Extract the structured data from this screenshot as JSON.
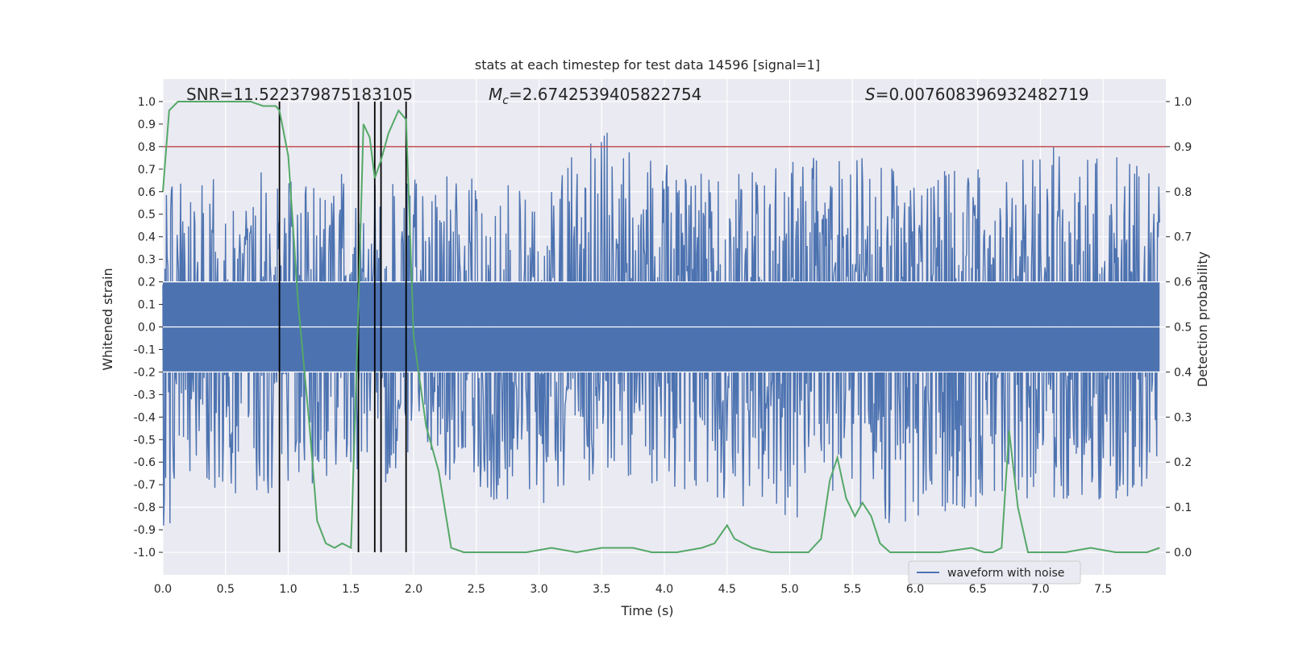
{
  "chart_data": {
    "type": "line",
    "title": "stats at each timestep for test data 14596 [signal=1]",
    "xlabel": "Time (s)",
    "ylabel_left": "Whitened strain",
    "ylabel_right": "Detection probability",
    "xlim": [
      0.0,
      8.0
    ],
    "ylim_left": [
      -1.1,
      1.1
    ],
    "ylim_right": [
      -0.05,
      1.05
    ],
    "x_ticks": [
      "0.0",
      "0.5",
      "1.0",
      "1.5",
      "2.0",
      "2.5",
      "3.0",
      "3.5",
      "4.0",
      "4.5",
      "5.0",
      "5.5",
      "6.0",
      "6.5",
      "7.0",
      "7.5"
    ],
    "x_tick_values": [
      0.0,
      0.5,
      1.0,
      1.5,
      2.0,
      2.5,
      3.0,
      3.5,
      4.0,
      4.5,
      5.0,
      5.5,
      6.0,
      6.5,
      7.0,
      7.5
    ],
    "y_left_ticks": [
      "-1.0",
      "-0.9",
      "-0.8",
      "-0.7",
      "-0.6",
      "-0.5",
      "-0.4",
      "-0.3",
      "-0.2",
      "-0.1",
      "0.0",
      "0.1",
      "0.2",
      "0.3",
      "0.4",
      "0.5",
      "0.6",
      "0.7",
      "0.8",
      "0.9",
      "1.0"
    ],
    "y_left_tick_values": [
      -1.0,
      -0.9,
      -0.8,
      -0.7,
      -0.6,
      -0.5,
      -0.4,
      -0.3,
      -0.2,
      -0.1,
      0.0,
      0.1,
      0.2,
      0.3,
      0.4,
      0.5,
      0.6,
      0.7,
      0.8,
      0.9,
      1.0
    ],
    "y_right_ticks": [
      "0.0",
      "0.1",
      "0.2",
      "0.3",
      "0.4",
      "0.5",
      "0.6",
      "0.7",
      "0.8",
      "0.9",
      "1.0"
    ],
    "y_right_tick_values": [
      0.0,
      0.1,
      0.2,
      0.3,
      0.4,
      0.5,
      0.6,
      0.7,
      0.8,
      0.9,
      1.0
    ],
    "grid": true,
    "legend": {
      "placement": "lower-right",
      "entries": [
        "waveform with noise"
      ]
    },
    "annotations": {
      "snr": "SNR=11.522379875183105",
      "mc_symbol": "M",
      "mc_sub": "c",
      "mc_value": "=2.6742539405822754",
      "s_symbol": "S",
      "s_value": "=0.007608396932482719"
    },
    "threshold": {
      "value": 0.8,
      "color": "#c44e52"
    },
    "vertical_markers": {
      "x": [
        0.93,
        1.56,
        1.69,
        1.74,
        1.94
      ],
      "ymin": -1.0,
      "ymax": 1.0,
      "color": "#000000"
    },
    "series": [
      {
        "name": "waveform with noise",
        "axis": "left",
        "color": "#4c72b0",
        "description_envelope": {
          "x": [
            0.0,
            0.25,
            0.5,
            0.75,
            1.0,
            1.25,
            1.5,
            1.75,
            2.0,
            2.5,
            3.0,
            3.5,
            4.0,
            4.5,
            5.0,
            5.5,
            6.0,
            6.5,
            7.0,
            7.5,
            7.95
          ],
          "upper": [
            0.6,
            0.8,
            0.65,
            0.7,
            0.66,
            0.62,
            0.72,
            0.7,
            0.7,
            0.68,
            0.62,
            0.88,
            0.72,
            0.7,
            0.75,
            0.78,
            0.68,
            0.72,
            0.8,
            0.8,
            0.7
          ],
          "lower": [
            -0.98,
            -0.6,
            -0.78,
            -0.8,
            -0.69,
            -0.7,
            -0.62,
            -0.7,
            -0.6,
            -0.76,
            -0.8,
            -0.7,
            -0.7,
            -0.8,
            -0.86,
            -0.8,
            -0.92,
            -0.84,
            -0.76,
            -0.84,
            -0.7
          ]
        }
      },
      {
        "name": "",
        "axis": "right",
        "color": "#55a868",
        "x": [
          0.0,
          0.05,
          0.12,
          0.2,
          0.3,
          0.4,
          0.5,
          0.6,
          0.7,
          0.8,
          0.9,
          0.93,
          1.0,
          1.08,
          1.17,
          1.23,
          1.3,
          1.37,
          1.43,
          1.5,
          1.55,
          1.6,
          1.65,
          1.69,
          1.74,
          1.8,
          1.88,
          1.94,
          2.0,
          2.1,
          2.2,
          2.3,
          2.4,
          2.5,
          2.7,
          2.9,
          3.1,
          3.3,
          3.5,
          3.65,
          3.75,
          3.9,
          4.1,
          4.3,
          4.4,
          4.5,
          4.56,
          4.63,
          4.7,
          4.85,
          5.0,
          5.15,
          5.25,
          5.32,
          5.38,
          5.45,
          5.52,
          5.58,
          5.65,
          5.72,
          5.8,
          6.0,
          6.2,
          6.45,
          6.55,
          6.62,
          6.69,
          6.75,
          6.82,
          6.9,
          7.0,
          7.2,
          7.4,
          7.6,
          7.85,
          7.95
        ],
        "y": [
          0.8,
          0.98,
          1.0,
          1.0,
          1.0,
          1.0,
          1.0,
          1.0,
          1.0,
          0.99,
          0.99,
          0.98,
          0.88,
          0.55,
          0.28,
          0.07,
          0.02,
          0.01,
          0.02,
          0.01,
          0.45,
          0.95,
          0.92,
          0.83,
          0.87,
          0.93,
          0.98,
          0.96,
          0.48,
          0.28,
          0.18,
          0.01,
          0.0,
          0.0,
          0.0,
          0.0,
          0.01,
          0.0,
          0.01,
          0.01,
          0.01,
          0.0,
          0.0,
          0.01,
          0.02,
          0.06,
          0.03,
          0.02,
          0.01,
          0.0,
          0.0,
          0.0,
          0.03,
          0.16,
          0.21,
          0.12,
          0.08,
          0.11,
          0.08,
          0.02,
          0.0,
          0.0,
          0.0,
          0.01,
          0.0,
          0.0,
          0.01,
          0.27,
          0.1,
          0.0,
          0.0,
          0.0,
          0.01,
          0.0,
          0.0,
          0.01
        ]
      }
    ]
  }
}
